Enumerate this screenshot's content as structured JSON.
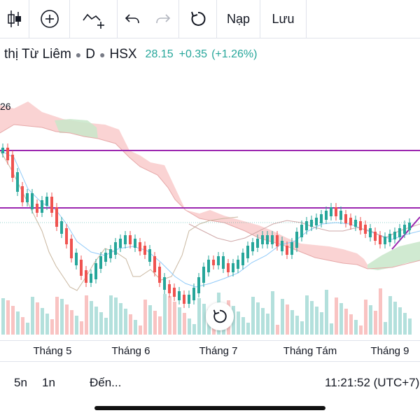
{
  "toolbar": {
    "reload_label": "Nạp",
    "save_label": "Lưu",
    "icons": [
      "candles-icon",
      "add-circle-icon",
      "indicator-add-icon",
      "undo-icon",
      "redo-icon",
      "reset-icon"
    ]
  },
  "symbol": {
    "name": "thị Từ Liêm",
    "interval": "D",
    "exchange": "HSX",
    "price": "28.15",
    "change": "+0.35",
    "change_pct": "(+1.26%)"
  },
  "indicator_value": "26",
  "x_axis": {
    "labels": [
      "Tháng 5",
      "Tháng 6",
      "Tháng 7",
      "Tháng Tám",
      "Tháng 9"
    ]
  },
  "footer": {
    "range_5d": "5n",
    "range_1m": "1n",
    "goto": "Đến...",
    "time": "11:21:52 (UTC+7)"
  },
  "colors": {
    "up": "#26a69a",
    "down": "#ef5350",
    "line": "#9c27b0",
    "cloud_down": "#f8c4c4",
    "cloud_up": "#c8e6c9"
  }
}
